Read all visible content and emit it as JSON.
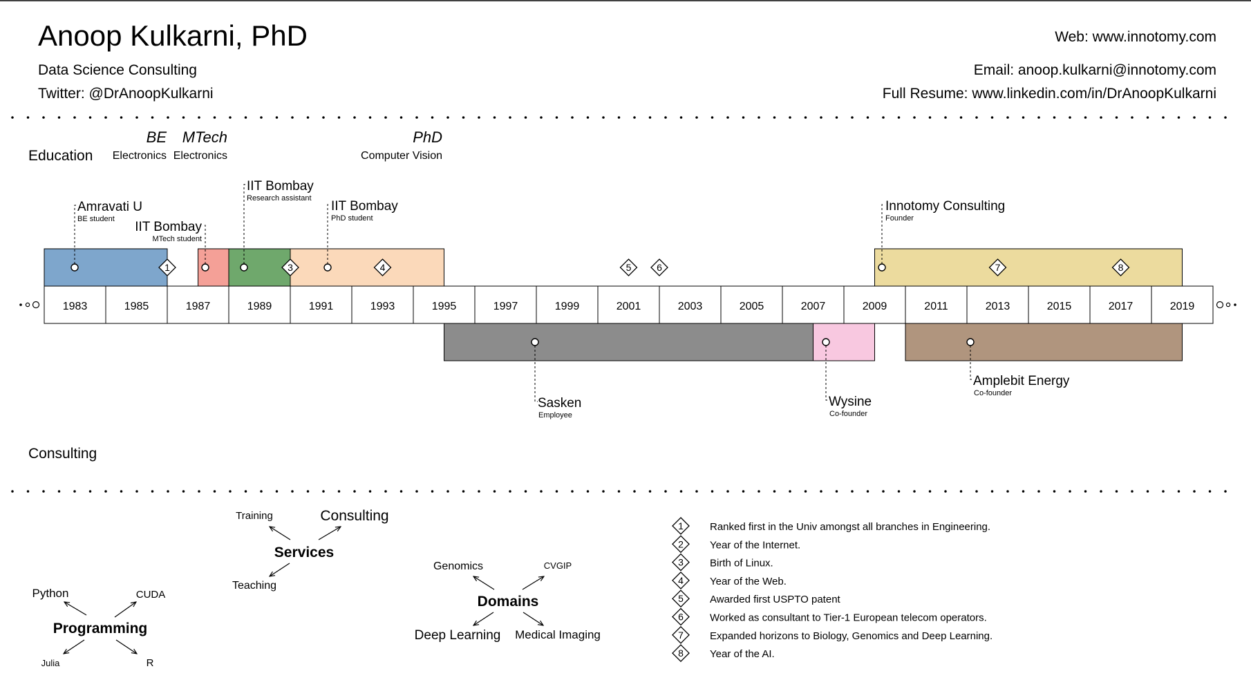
{
  "header": {
    "name": "Anoop Kulkarni, PhD",
    "tagline": "Data Science Consulting",
    "twitter": "Twitter: @DrAnoopKulkarni",
    "web": "Web: www.innotomy.com",
    "email": "Email: anoop.kulkarni@innotomy.com",
    "resume": "Full Resume: www.linkedin.com/in/DrAnoopKulkarni"
  },
  "sections": {
    "education": "Education",
    "consulting": "Consulting"
  },
  "degrees": [
    {
      "title": "BE",
      "field": "Electronics"
    },
    {
      "title": "MTech",
      "field": "Electronics"
    },
    {
      "title": "PhD",
      "field": "Computer Vision"
    }
  ],
  "timeline": {
    "years": [
      "1983",
      "1985",
      "1987",
      "1989",
      "1991",
      "1993",
      "1995",
      "1997",
      "1999",
      "2001",
      "2003",
      "2005",
      "2007",
      "2009",
      "2011",
      "2013",
      "2015",
      "2017",
      "2019"
    ],
    "first_year": 1983,
    "year_span": 40
  },
  "periods_above": [
    {
      "start": 1982,
      "end": 1986,
      "color": "#7ea6cc",
      "label": "Amravati U",
      "sub": "BE student"
    },
    {
      "start": 1987,
      "end": 1988,
      "color": "#f4a097",
      "label": "IIT Bombay",
      "sub": "MTech student"
    },
    {
      "start": 1988,
      "end": 1990,
      "color": "#6fa86c",
      "label": "IIT Bombay",
      "sub": "Research assistant"
    },
    {
      "start": 1990,
      "end": 1995,
      "color": "#fbd9ba",
      "label": "IIT Bombay",
      "sub": "PhD student"
    },
    {
      "start": 2009,
      "end": 2019,
      "color": "#ecdb9e",
      "label": "Innotomy Consulting",
      "sub": "Founder"
    }
  ],
  "periods_below": [
    {
      "start": 1995,
      "end": 2007,
      "color": "#8c8c8c",
      "label": "Sasken",
      "sub": "Employee"
    },
    {
      "start": 2007,
      "end": 2009,
      "color": "#f8c8e0",
      "label": "Wysine",
      "sub": "Co-founder"
    },
    {
      "start": 2010,
      "end": 2019,
      "color": "#b0957e",
      "label": "Amplebit Energy",
      "sub": "Co-founder"
    }
  ],
  "milestones": [
    {
      "id": "1",
      "year": 1986,
      "text": "Ranked first in the Univ amongst all branches in Engineering."
    },
    {
      "id": "2",
      "year": 1990,
      "text": "Year of the Internet."
    },
    {
      "id": "3",
      "year": 1990,
      "text": "Birth of Linux."
    },
    {
      "id": "4",
      "year": 1993,
      "text": "Year of the Web."
    },
    {
      "id": "5",
      "year": 2001,
      "text": "Awarded first USPTO patent"
    },
    {
      "id": "6",
      "year": 2002,
      "text": "Worked as consultant to Tier-1 European telecom operators."
    },
    {
      "id": "7",
      "year": 2013,
      "text": "Expanded horizons to Biology, Genomics and Deep Learning."
    },
    {
      "id": "8",
      "year": 2017,
      "text": "Year of the AI."
    }
  ],
  "clusters": [
    {
      "center": "Programming",
      "items": [
        "Python",
        "CUDA",
        "Julia",
        "R"
      ]
    },
    {
      "center": "Services",
      "items": [
        "Training",
        "Consulting",
        "Teaching"
      ]
    },
    {
      "center": "Domains",
      "items": [
        "Genomics",
        "CVGIP",
        "Deep Learning",
        "Medical Imaging"
      ]
    }
  ]
}
